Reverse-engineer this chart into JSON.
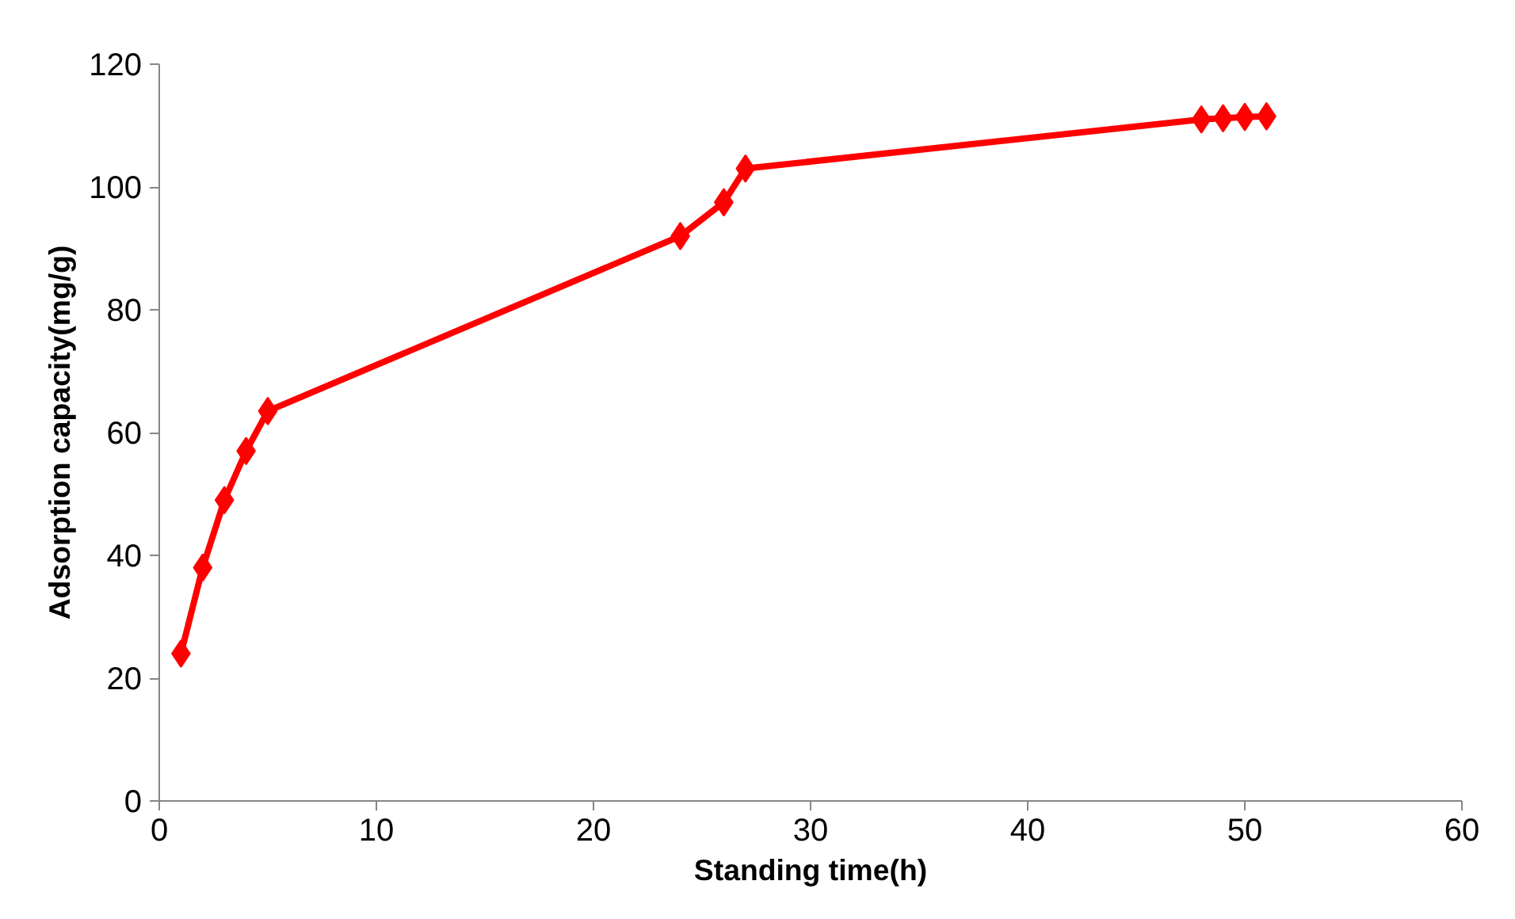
{
  "chart_data": {
    "type": "line",
    "xlabel": "Standing time(h)",
    "ylabel": "Adsorption capacity(mg/g)",
    "x": [
      1,
      2,
      3,
      4,
      5,
      24,
      26,
      27,
      48,
      49,
      50,
      51
    ],
    "series": [
      {
        "color": "#ff0000",
        "values": [
          24,
          38,
          49,
          57,
          63.5,
          92,
          97.5,
          103,
          111,
          111.2,
          111.4,
          111.5
        ]
      }
    ],
    "xlim": [
      0,
      60
    ],
    "xticks": [
      0,
      10,
      20,
      30,
      40,
      50,
      60
    ],
    "ylim": [
      0,
      120
    ],
    "yticks": [
      0,
      20,
      40,
      60,
      80,
      100,
      120
    ],
    "grid": false,
    "marker": "diamond",
    "line_style": "solid"
  }
}
